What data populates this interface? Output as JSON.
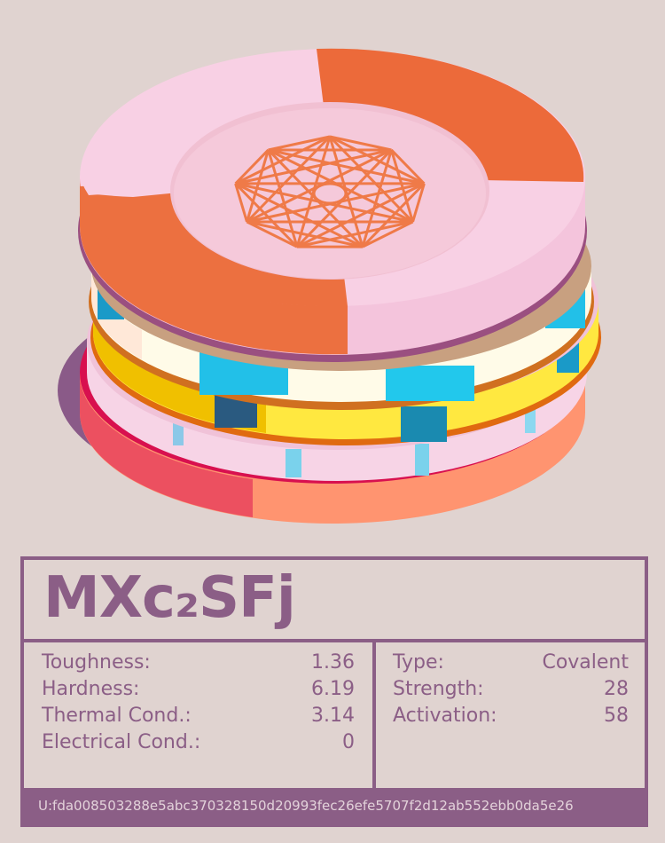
{
  "card": {
    "title": "MXc₂SFj",
    "properties": [
      {
        "label": "Toughness:",
        "value": "1.36"
      },
      {
        "label": "Hardness:",
        "value": "6.19"
      },
      {
        "label": "Thermal Cond.:",
        "value": "3.14"
      },
      {
        "label": "Electrical Cond.:",
        "value": "0"
      }
    ],
    "bond": [
      {
        "label": "Type:",
        "value": "Covalent"
      },
      {
        "label": "Strength:",
        "value": "28"
      },
      {
        "label": "Activation:",
        "value": "58"
      }
    ],
    "uid": "U:fda008503288e5abc370328150d20993fec26efe5707f2d12ab552ebb0da5e26"
  }
}
